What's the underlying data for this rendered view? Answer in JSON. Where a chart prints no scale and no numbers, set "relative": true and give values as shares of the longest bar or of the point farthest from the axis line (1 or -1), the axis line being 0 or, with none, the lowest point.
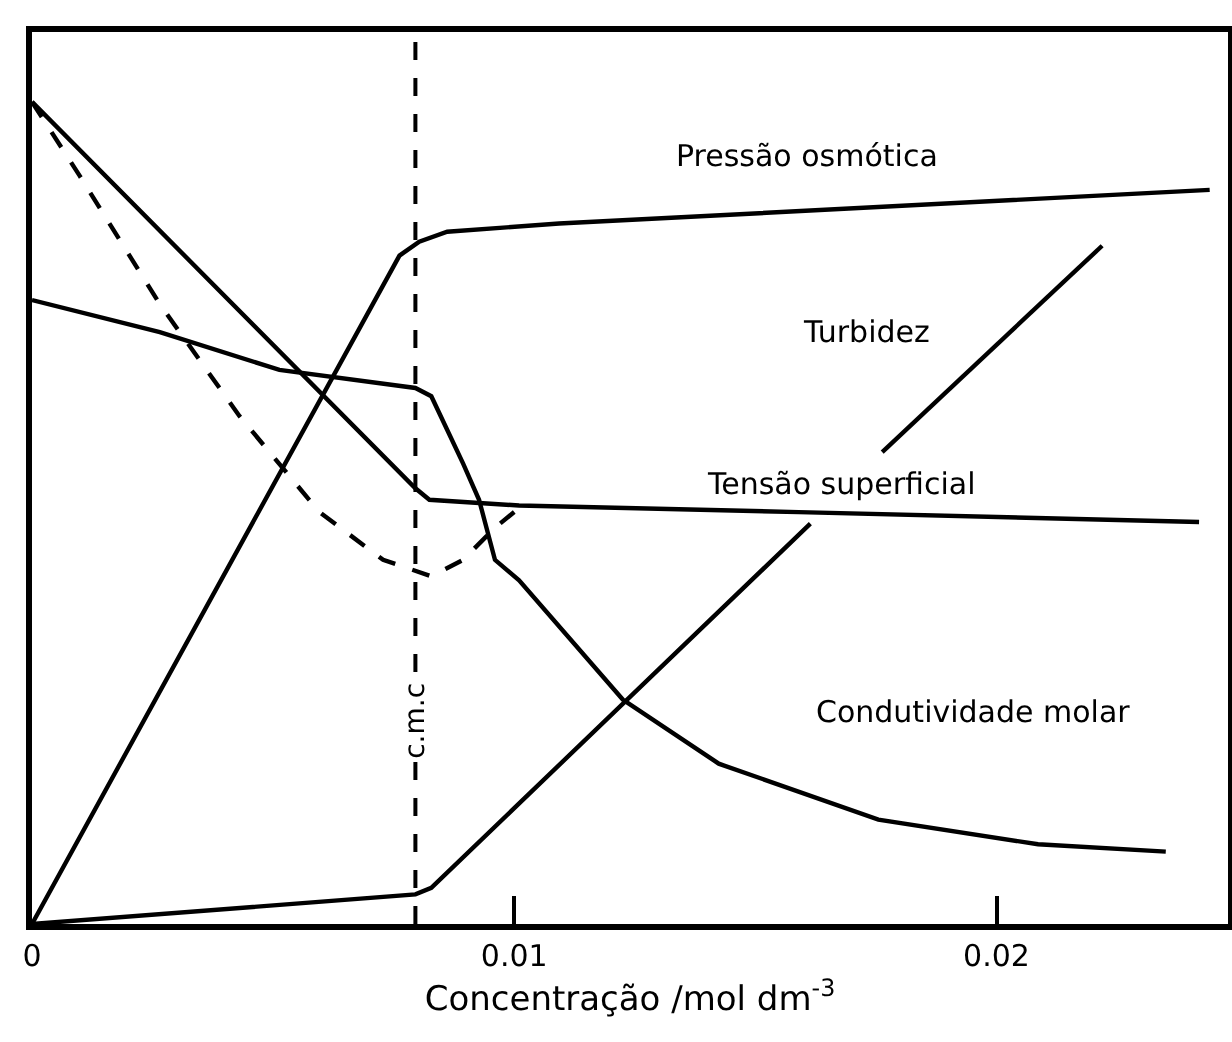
{
  "chart_data": {
    "type": "line",
    "relative": true,
    "xlabel": "Concentração /mol dm$^{-3}$",
    "xlim": [
      0,
      0.0248
    ],
    "xticks": [
      0,
      0.01,
      0.02
    ],
    "grid": false,
    "legend": false,
    "marker": "none",
    "line_style": "solid",
    "series": [
      {
        "name": "Pressão osmótica",
        "color": "#000000",
        "x": [
          0,
          0.00762,
          0.00803,
          0.00861,
          0.01093,
          0.02442
        ],
        "values": [
          0,
          0.813,
          0.83,
          0.842,
          0.852,
          0.893
        ]
      },
      {
        "name": "Turbidez",
        "color": "#000000",
        "x": [
          0,
          0.00795,
          0.00828,
          0.01614,
          0.0169,
          0.01763,
          0.02219
        ],
        "values": [
          0,
          0.036,
          0.044,
          0.487,
          null,
          0.574,
          0.825
        ]
      },
      {
        "name": "Tensão superficial",
        "color": "#000000",
        "x": [
          0,
          0.00795,
          0.00824,
          0.0101,
          0.0159,
          0.0242
        ],
        "values": [
          1,
          0.53,
          0.516,
          0.509,
          0.501,
          0.489
        ]
      },
      {
        "name": "Condutividade molar",
        "color": "#000000",
        "x": [
          0,
          0.00265,
          0.00513,
          0.00795,
          0.00828,
          0.00894,
          0.00927,
          0.0096,
          0.0101,
          0.01225,
          0.01424,
          0.01755,
          0.02086,
          0.02351
        ],
        "values": [
          0.759,
          0.72,
          0.674,
          0.652,
          0.642,
          0.56,
          0.516,
          0.443,
          0.418,
          0.273,
          0.195,
          0.127,
          0.097,
          0.088
        ]
      },
      {
        "color": "#000000",
        "line_style": "dashed",
        "x": [
          0,
          0.00099,
          0.00265,
          0.0043,
          0.00596,
          0.00728,
          0.00828,
          0.00894,
          0.0096,
          0.0101
        ],
        "values": [
          1,
          0.91,
          0.754,
          0.618,
          0.501,
          0.443,
          0.423,
          0.443,
          0.482,
          0.506
        ]
      }
    ],
    "ref_lines": [
      {
        "axis": "x",
        "value": 0.00795,
        "label": "c.m.c",
        "line_style": "dashed",
        "color": "#000000"
      }
    ]
  }
}
